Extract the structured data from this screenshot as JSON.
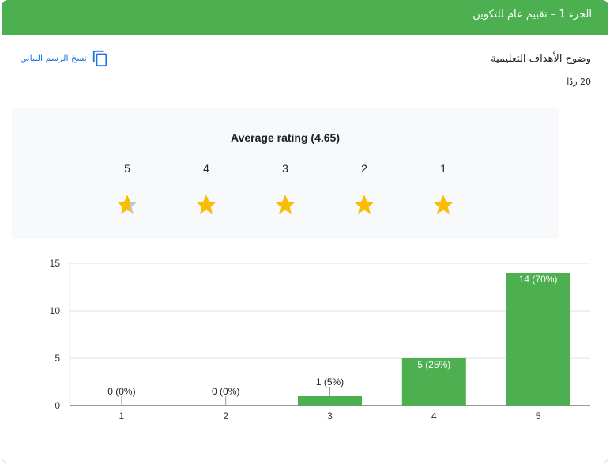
{
  "header": {
    "title": "الجزء 1 – تقييم عام للتكوين"
  },
  "question": {
    "title": "وضوح الأهداف التعليمية",
    "responses": "20 ردًا"
  },
  "copy_chart": {
    "label": "نسخ الرسم البياني",
    "icon": "copy-icon"
  },
  "rating": {
    "title": "Average rating (4.65)",
    "average": 4.65,
    "icon": "star-icon",
    "stars": [
      {
        "label": "5",
        "fill": 0.65
      },
      {
        "label": "4",
        "fill": 1
      },
      {
        "label": "3",
        "fill": 1
      },
      {
        "label": "2",
        "fill": 1
      },
      {
        "label": "1",
        "fill": 1
      }
    ]
  },
  "colors": {
    "header": "#4caf50",
    "bar": "#4caf50",
    "star_filled": "#fbbc04",
    "star_empty": "#c4c7c5",
    "link": "#1a73e8",
    "panel": "#f8f9fa"
  },
  "chart_data": {
    "type": "bar",
    "categories": [
      "1",
      "2",
      "3",
      "4",
      "5"
    ],
    "values": [
      0,
      0,
      1,
      5,
      14
    ],
    "data_labels": [
      "0 (0%)",
      "0 (0%)",
      "1 (5%)",
      "5 (25%)",
      "14 (70%)"
    ],
    "yticks": [
      0,
      5,
      10,
      15
    ],
    "ylim": [
      0,
      15
    ],
    "grid": true
  }
}
